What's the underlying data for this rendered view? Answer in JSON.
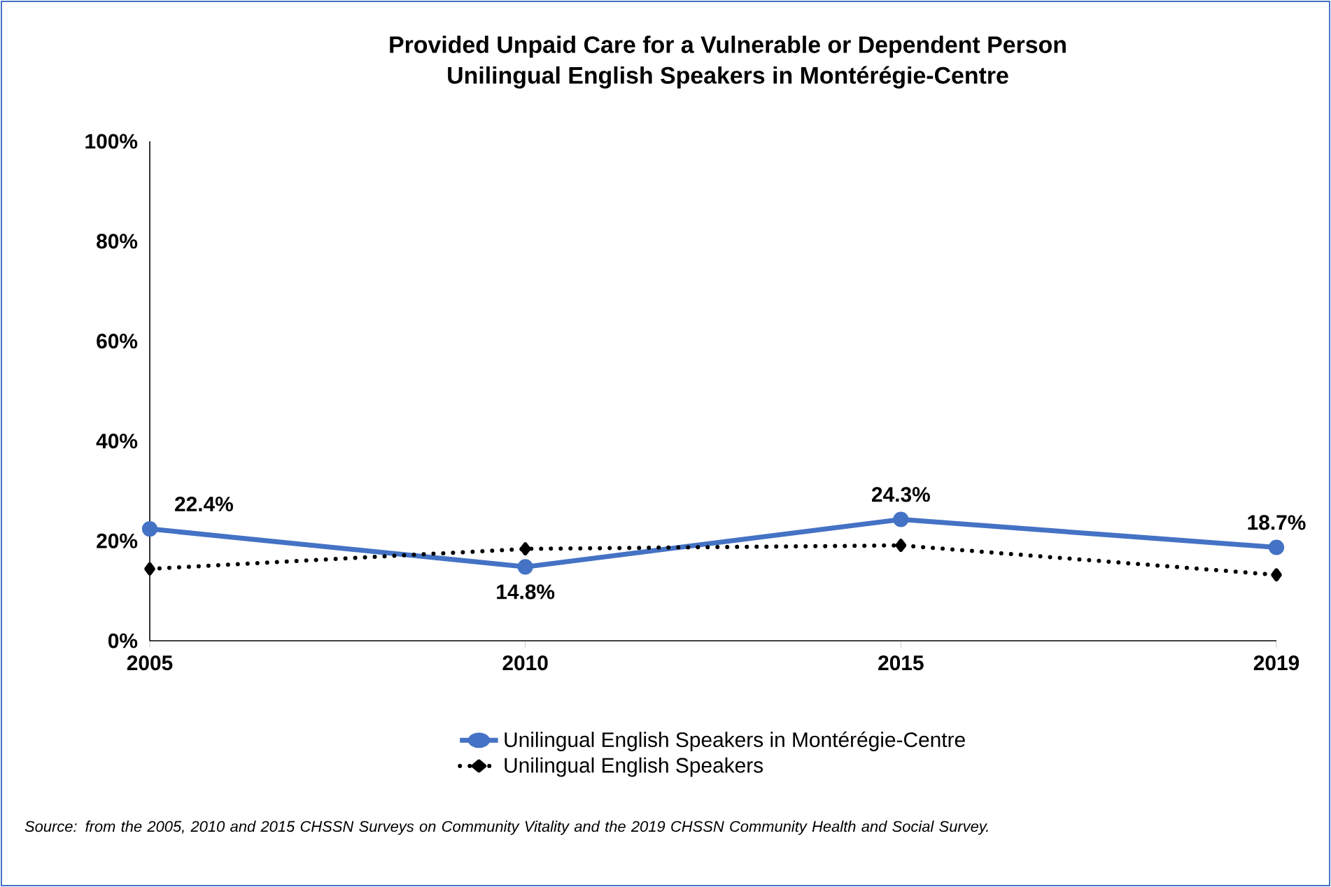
{
  "chart_data": {
    "type": "line",
    "title": "Provided Unpaid Care for a Vulnerable or Dependent Person",
    "subtitle": "Unilingual English Speakers in Montérégie-Centre",
    "categories": [
      "2005",
      "2010",
      "2015",
      "2019"
    ],
    "series": [
      {
        "name": "Unilingual English Speakers in Montérégie-Centre",
        "color": "#4472c4",
        "values": [
          22.4,
          14.8,
          24.3,
          18.7
        ],
        "value_labels": [
          "22.4%",
          "14.8%",
          "24.3%",
          "18.7%"
        ],
        "marker": "circle",
        "line_style": "solid"
      },
      {
        "name": "Unilingual English Speakers",
        "color": "#000000",
        "values": [
          14.4,
          18.4,
          19.1,
          13.2
        ],
        "marker": "diamond",
        "line_style": "dotted"
      }
    ],
    "ylim": [
      0,
      100
    ],
    "yticks": [
      {
        "value": 0,
        "label": "0%"
      },
      {
        "value": 20,
        "label": "20%"
      },
      {
        "value": 40,
        "label": "40%"
      },
      {
        "value": 60,
        "label": "60%"
      },
      {
        "value": 80,
        "label": "80%"
      },
      {
        "value": 100,
        "label": "100%"
      }
    ],
    "grid": false,
    "legend": "bottom",
    "annotations": [
      "Source: from the 2005, 2010 and 2015 CHSSN Surveys on Community Vitality and the 2019 CHSSN Community Health and Social Survey."
    ]
  }
}
